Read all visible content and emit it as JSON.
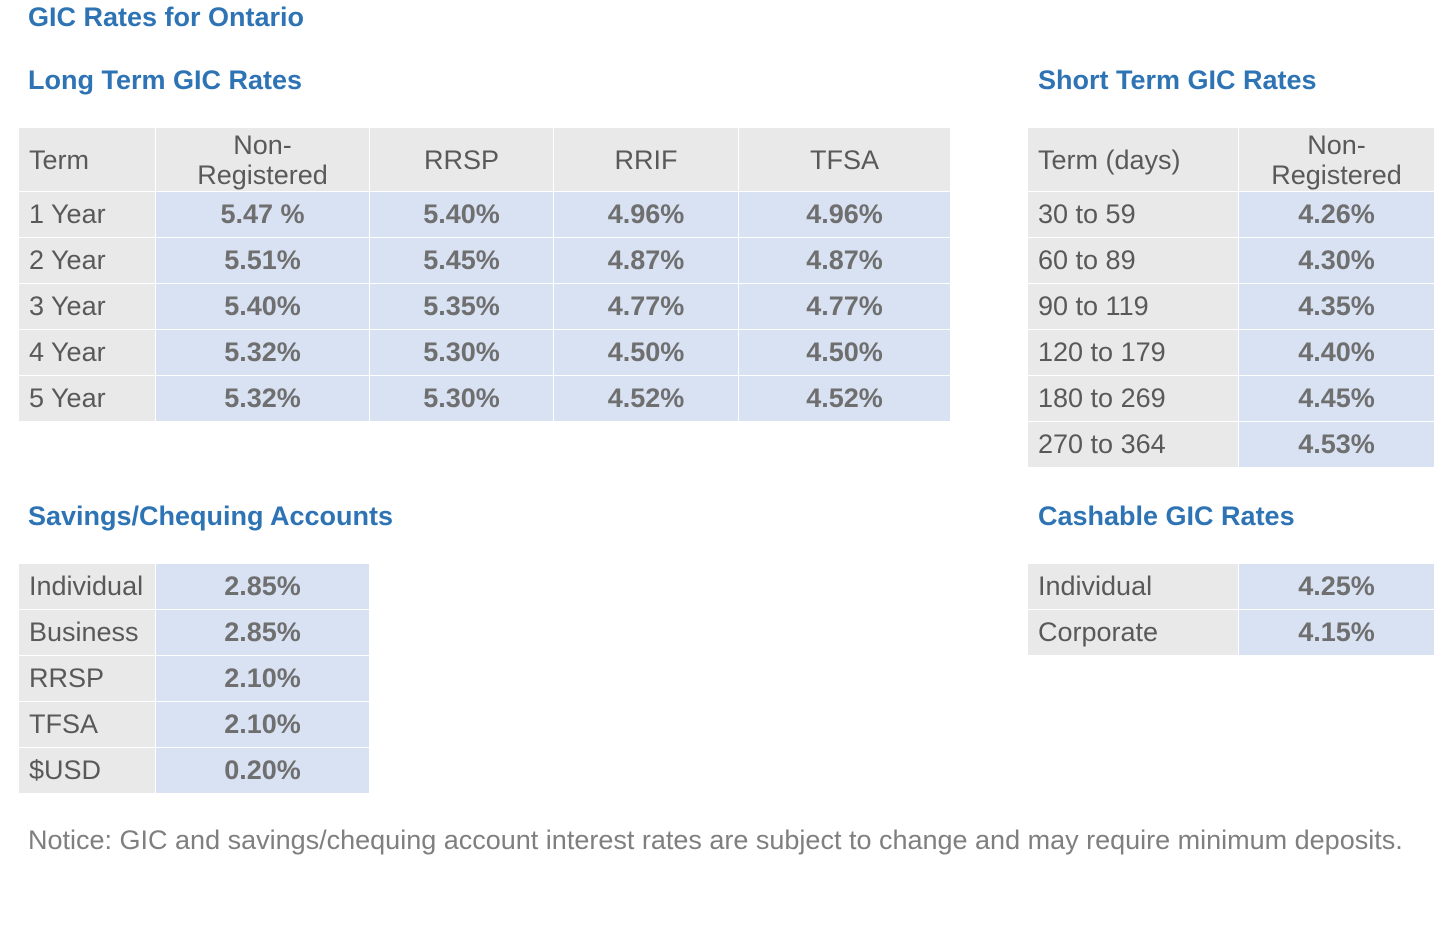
{
  "page_title": "GIC Rates for Ontario",
  "long_term": {
    "heading": "Long Term GIC Rates",
    "headers": [
      "Term",
      "Non-\nRegistered",
      "RRSP",
      "RRIF",
      "TFSA"
    ],
    "rows": [
      [
        "1 Year",
        "5.47 %",
        "5.40%",
        "4.96%",
        "4.96%"
      ],
      [
        "2 Year",
        "5.51%",
        "5.45%",
        "4.87%",
        "4.87%"
      ],
      [
        "3 Year",
        "5.40%",
        "5.35%",
        "4.77%",
        "4.77%"
      ],
      [
        "4 Year",
        "5.32%",
        "5.30%",
        "4.50%",
        "4.50%"
      ],
      [
        "5 Year",
        "5.32%",
        "5.30%",
        "4.52%",
        "4.52%"
      ]
    ]
  },
  "short_term": {
    "heading": "Short Term GIC Rates",
    "headers": [
      "Term (days)",
      "Non-\nRegistered"
    ],
    "rows": [
      [
        "30 to 59",
        "4.26%"
      ],
      [
        "60 to 89",
        "4.30%"
      ],
      [
        "90 to 119",
        "4.35%"
      ],
      [
        "120 to 179",
        "4.40%"
      ],
      [
        "180 to 269",
        "4.45%"
      ],
      [
        "270 to 364",
        "4.53%"
      ]
    ]
  },
  "savings": {
    "heading": "Savings/Chequing Accounts",
    "rows": [
      [
        "Individual",
        "2.85%"
      ],
      [
        "Business",
        "2.85%"
      ],
      [
        "RRSP",
        "2.10%"
      ],
      [
        "TFSA",
        "2.10%"
      ],
      [
        "$USD",
        "0.20%"
      ]
    ]
  },
  "cashable": {
    "heading": "Cashable GIC Rates",
    "rows": [
      [
        "Individual",
        "4.25%"
      ],
      [
        "Corporate",
        "4.15%"
      ]
    ]
  },
  "notice": "Notice: GIC and savings/chequing account interest rates are subject to change and may require minimum deposits.",
  "colors": {
    "heading": "#2e74b5",
    "label_bg": "#e9e9e9",
    "value_bg": "#d9e2f3",
    "text": "#595959"
  }
}
